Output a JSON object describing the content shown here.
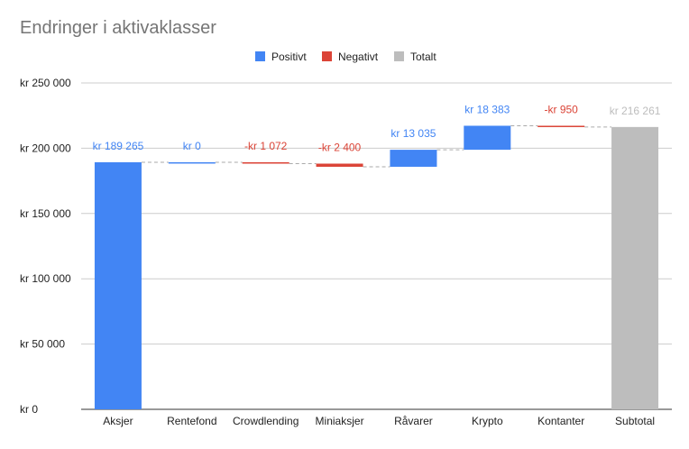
{
  "chart_data": {
    "type": "waterfall",
    "title": "Endringer i aktivaklasser",
    "legend": {
      "position": "top",
      "items": [
        {
          "key": "positive",
          "label": "Positivt",
          "color": "#4285f4"
        },
        {
          "key": "negative",
          "label": "Negativt",
          "color": "#db4437"
        },
        {
          "key": "total",
          "label": "Totalt",
          "color": "#bdbdbd"
        }
      ]
    },
    "categories": [
      "Aksjer",
      "Rentefond",
      "Crowdlending",
      "Miniaksjer",
      "Råvarer",
      "Krypto",
      "Kontanter",
      "Subtotal"
    ],
    "values": [
      189265,
      0,
      -1072,
      -2400,
      13035,
      18383,
      -950,
      216261
    ],
    "kinds": [
      "positive",
      "positive",
      "negative",
      "negative",
      "positive",
      "positive",
      "negative",
      "total"
    ],
    "data_labels": [
      "kr  189 265",
      "kr  0",
      "-kr  1 072",
      "-kr  2 400",
      "kr  13 035",
      "kr  18 383",
      "-kr  950",
      "kr  216 261"
    ],
    "ylim": [
      0,
      250000
    ],
    "y_ticks": [
      0,
      50000,
      100000,
      150000,
      200000,
      250000
    ],
    "y_tick_labels": [
      "kr      0",
      "kr   50 000",
      "kr  100 000",
      "kr  150 000",
      "kr  200 000",
      "kr  250 000"
    ],
    "grid": true,
    "connectors": true
  }
}
